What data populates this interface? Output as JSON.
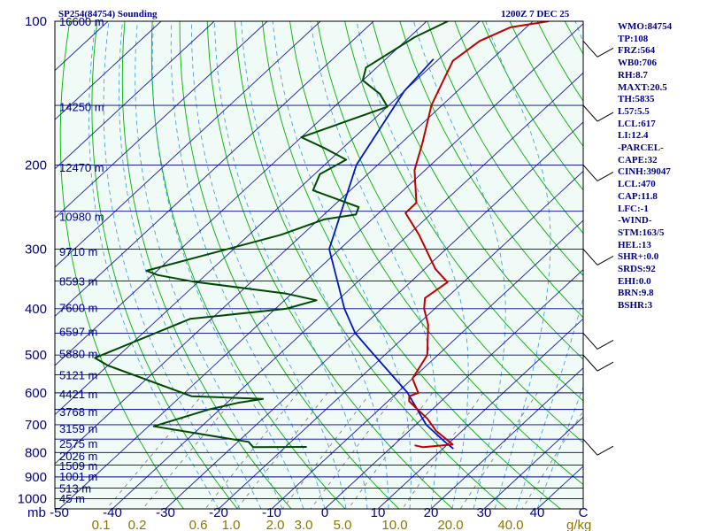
{
  "title": "SP254(84754) Sounding",
  "valid_time": "1200Z  7 DEC 25",
  "indices": [
    "WMO:84754",
    "TP:108",
    "FRZ:564",
    "WB0:706",
    "RH:8.7",
    "MAXT:20.5",
    "TH:5835",
    "L57:5.5",
    "LCL:617",
    "LI:12.4",
    "-PARCEL-",
    "CAPE:32",
    "CINH:39047",
    "LCL:470",
    "CAP:11.8",
    "LFC:-1",
    "-WIND-",
    "STM:163/5",
    "HEL:13",
    "SHR+:0.0",
    "SRDS:92",
    "EHI:0.0",
    "BRN:9.8",
    "BSHR:3"
  ],
  "colors": {
    "background": "#f0faf6",
    "isobar": "#00008b",
    "isotherm": "#1a1aaa",
    "dry_adiabat": "#00b000",
    "moist_adiabat": "#3399dd",
    "mixing_ratio": "#777777",
    "temperature": "#c00000",
    "dewpoint": "#004a00",
    "parcel": "#0018c0",
    "wind": "#000000",
    "labels": "#00008b",
    "mixing_labels": "#8b7500"
  },
  "chart_data": {
    "type": "skew-t",
    "pressure_levels": [
      100,
      200,
      300,
      400,
      500,
      600,
      700,
      800,
      900,
      1000
    ],
    "pressure_axis_unit": "mb",
    "temperature_ticks": [
      -50,
      -40,
      -30,
      -20,
      -10,
      0,
      10,
      20,
      30,
      40
    ],
    "temperature_axis_unit": "C",
    "mixing_ratio_ticks": [
      "0.1",
      "0.2",
      "0.6",
      "1.0",
      "2.0",
      "3.0",
      "5.0",
      "10.0",
      "20.0",
      "40.0"
    ],
    "mixing_ratio_unit": "g/kg",
    "height_labels": [
      {
        "p": 100,
        "label": "16600 m"
      },
      {
        "p": 151,
        "label": "14250 m"
      },
      {
        "p": 202,
        "label": "12470 m"
      },
      {
        "p": 256,
        "label": "10980 m"
      },
      {
        "p": 303,
        "label": "9710 m"
      },
      {
        "p": 350,
        "label": "8593 m"
      },
      {
        "p": 398,
        "label": "7600 m"
      },
      {
        "p": 446,
        "label": "6597 m"
      },
      {
        "p": 497,
        "label": "5880 m"
      },
      {
        "p": 550,
        "label": "5121 m"
      },
      {
        "p": 603,
        "label": "4421 m"
      },
      {
        "p": 657,
        "label": "3768 m"
      },
      {
        "p": 712,
        "label": "3159 m"
      },
      {
        "p": 765,
        "label": "2575 m"
      },
      {
        "p": 812,
        "label": "2026 m"
      },
      {
        "p": 852,
        "label": "1509 m"
      },
      {
        "p": 897,
        "label": "1001 m"
      },
      {
        "p": 949,
        "label": "513 m"
      },
      {
        "p": 997,
        "label": "45 m"
      }
    ],
    "temperature_profile": [
      {
        "p": 100,
        "t": -57
      },
      {
        "p": 103,
        "t": -63
      },
      {
        "p": 110,
        "t": -66
      },
      {
        "p": 121,
        "t": -67
      },
      {
        "p": 132,
        "t": -65
      },
      {
        "p": 150,
        "t": -62
      },
      {
        "p": 180,
        "t": -56
      },
      {
        "p": 205,
        "t": -52
      },
      {
        "p": 240,
        "t": -45
      },
      {
        "p": 252,
        "t": -45
      },
      {
        "p": 280,
        "t": -38
      },
      {
        "p": 330,
        "t": -28
      },
      {
        "p": 352,
        "t": -23
      },
      {
        "p": 380,
        "t": -24
      },
      {
        "p": 400,
        "t": -22
      },
      {
        "p": 432,
        "t": -18
      },
      {
        "p": 500,
        "t": -12
      },
      {
        "p": 560,
        "t": -10
      },
      {
        "p": 600,
        "t": -6
      },
      {
        "p": 610,
        "t": -7
      },
      {
        "p": 625,
        "t": -6
      },
      {
        "p": 680,
        "t": 1
      },
      {
        "p": 720,
        "t": 5
      },
      {
        "p": 770,
        "t": 11
      },
      {
        "p": 780,
        "t": 6
      },
      {
        "p": 773,
        "t": 4
      }
    ],
    "dewpoint_profile": [
      {
        "p": 100,
        "t": -76
      },
      {
        "p": 108,
        "t": -79
      },
      {
        "p": 125,
        "t": -82
      },
      {
        "p": 133,
        "t": -80
      },
      {
        "p": 142,
        "t": -74
      },
      {
        "p": 151,
        "t": -70
      },
      {
        "p": 175,
        "t": -80
      },
      {
        "p": 185,
        "t": -73
      },
      {
        "p": 195,
        "t": -67
      },
      {
        "p": 209,
        "t": -69
      },
      {
        "p": 226,
        "t": -67
      },
      {
        "p": 245,
        "t": -55
      },
      {
        "p": 254,
        "t": -54
      },
      {
        "p": 260,
        "t": -59
      },
      {
        "p": 280,
        "t": -64
      },
      {
        "p": 333,
        "t": -82
      },
      {
        "p": 340,
        "t": -79
      },
      {
        "p": 351,
        "t": -71
      },
      {
        "p": 372,
        "t": -51
      },
      {
        "p": 384,
        "t": -44
      },
      {
        "p": 400,
        "t": -48
      },
      {
        "p": 420,
        "t": -64
      },
      {
        "p": 507,
        "t": -74
      },
      {
        "p": 526,
        "t": -70
      },
      {
        "p": 610,
        "t": -48
      },
      {
        "p": 618,
        "t": -34
      },
      {
        "p": 630,
        "t": -38
      },
      {
        "p": 650,
        "t": -42
      },
      {
        "p": 705,
        "t": -49
      },
      {
        "p": 760,
        "t": -28
      },
      {
        "p": 780,
        "t": -26
      },
      {
        "p": 779,
        "t": -16
      }
    ],
    "parcel_profile": [
      {
        "p": 786,
        "t": 12
      },
      {
        "p": 760,
        "t": 9
      },
      {
        "p": 700,
        "t": 2
      },
      {
        "p": 600,
        "t": -8
      },
      {
        "p": 500,
        "t": -22
      },
      {
        "p": 450,
        "t": -30
      },
      {
        "p": 400,
        "t": -37
      },
      {
        "p": 300,
        "t": -52
      },
      {
        "p": 200,
        "t": -64
      },
      {
        "p": 140,
        "t": -70
      },
      {
        "p": 120,
        "t": -71
      }
    ],
    "wind_barbs": [
      {
        "p": 110,
        "spd": 50
      },
      {
        "p": 150,
        "spd": 15
      },
      {
        "p": 200,
        "spd": 20
      },
      {
        "p": 300,
        "spd": 15
      },
      {
        "p": 450,
        "spd": 5
      },
      {
        "p": 500,
        "spd": 10
      },
      {
        "p": 750,
        "spd": 10
      }
    ]
  }
}
